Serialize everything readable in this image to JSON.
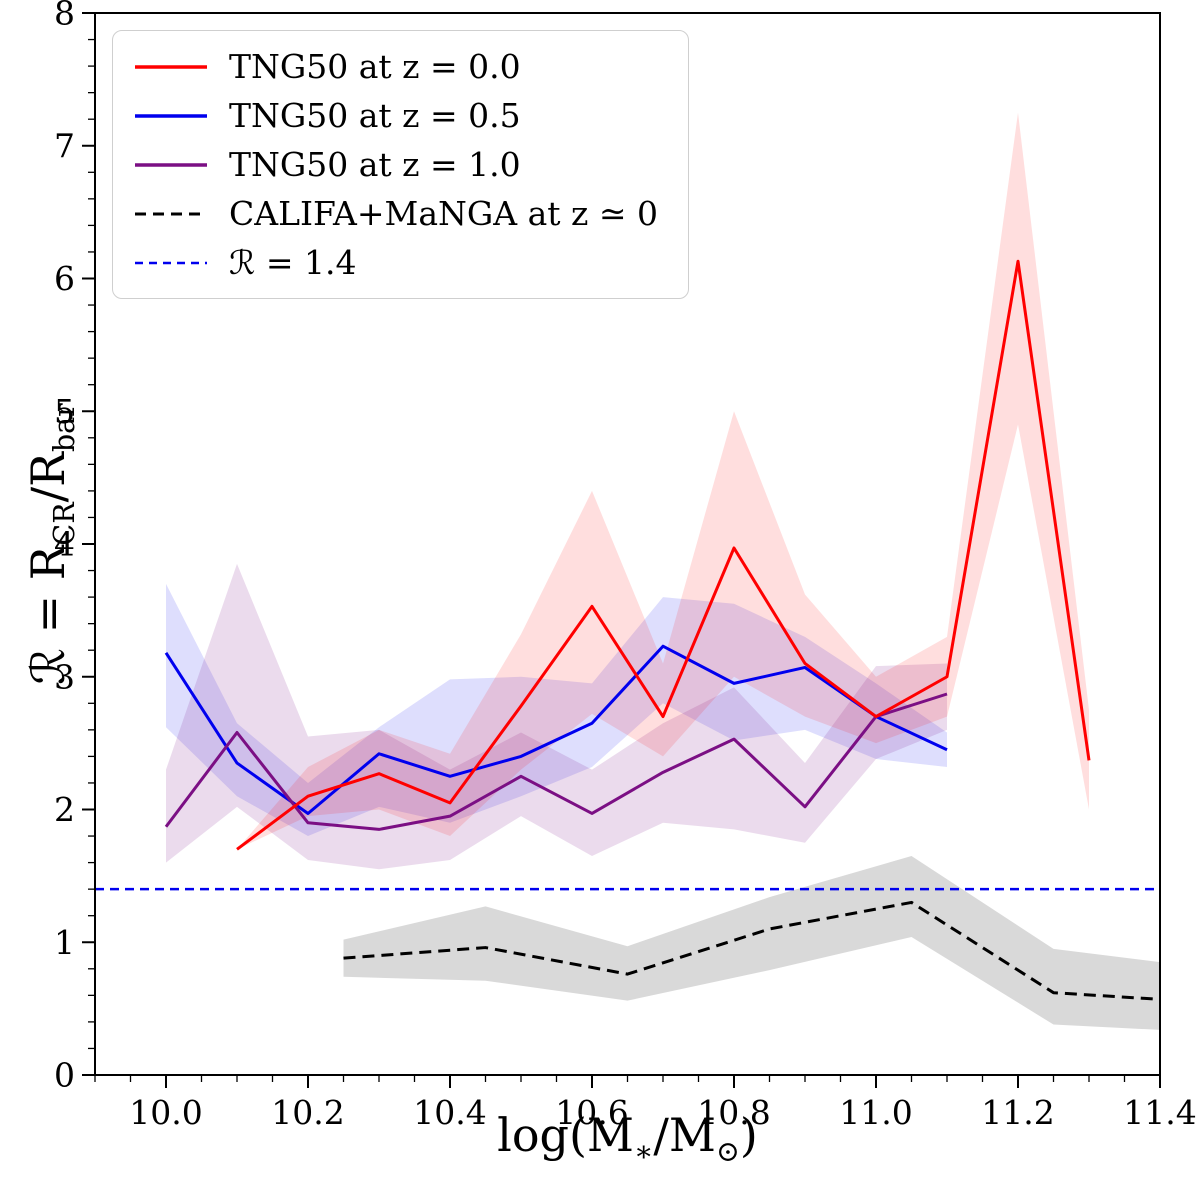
{
  "chart_data": {
    "type": "line",
    "title": "",
    "xlabel_parts": {
      "p1": "log(M",
      "s1": "∗",
      "p2": "/M",
      "s2": "⊙",
      "p3": ")"
    },
    "ylabel_parts": {
      "p1": "ℛ = R",
      "s1": "CR",
      "p2": "/R",
      "s2": "bar"
    },
    "xlim": [
      9.9,
      11.4
    ],
    "ylim": [
      0,
      8
    ],
    "grid": false,
    "xticks": {
      "values": [
        10.0,
        10.2,
        10.4,
        10.6,
        10.8,
        11.0,
        11.2,
        11.4
      ],
      "labels": [
        "10.0",
        "10.2",
        "10.4",
        "10.6",
        "10.8",
        "11.0",
        "11.2",
        "11.4"
      ]
    },
    "yticks": {
      "values": [
        0,
        1,
        2,
        3,
        4,
        5,
        6,
        7,
        8
      ],
      "labels": [
        "0",
        "1",
        "2",
        "3",
        "4",
        "5",
        "6",
        "7",
        "8"
      ]
    },
    "minor": {
      "x_step": 0.05,
      "y_step": 0.2
    },
    "hline": {
      "y": 1.4,
      "color": "#0000ee",
      "dash": "9,6",
      "width": 2.5
    },
    "series": [
      {
        "name": "TNG50 at z = 0.5",
        "color": "#0000ee",
        "style": "solid",
        "width": 3,
        "x": [
          10.0,
          10.1,
          10.2,
          10.3,
          10.4,
          10.5,
          10.6,
          10.7,
          10.8,
          10.9,
          11.0,
          11.1
        ],
        "y": [
          3.18,
          2.35,
          1.97,
          2.42,
          2.25,
          2.4,
          2.65,
          3.23,
          2.95,
          3.07,
          2.7,
          2.45
        ],
        "band": {
          "lower": [
            2.62,
            2.1,
            1.8,
            2.02,
            1.9,
            2.1,
            2.32,
            2.8,
            2.52,
            2.6,
            2.38,
            2.32
          ],
          "upper": [
            3.7,
            2.65,
            2.2,
            2.62,
            2.98,
            3.0,
            2.95,
            3.6,
            3.55,
            3.3,
            2.95,
            2.58
          ],
          "fill": "rgba(0,0,238,0.13)"
        }
      },
      {
        "name": "TNG50 at z = 1.0",
        "color": "#7b0f84",
        "style": "solid",
        "width": 3,
        "x": [
          10.0,
          10.1,
          10.2,
          10.3,
          10.4,
          10.5,
          10.6,
          10.7,
          10.8,
          10.9,
          11.0,
          11.1
        ],
        "y": [
          1.87,
          2.58,
          1.9,
          1.85,
          1.95,
          2.25,
          1.97,
          2.28,
          2.53,
          2.02,
          2.7,
          2.87
        ],
        "band": {
          "lower": [
            1.6,
            2.02,
            1.62,
            1.55,
            1.62,
            1.95,
            1.65,
            1.9,
            1.85,
            1.75,
            2.38,
            2.6
          ],
          "upper": [
            2.3,
            3.85,
            2.55,
            2.6,
            2.3,
            2.58,
            2.3,
            2.65,
            2.92,
            2.35,
            3.08,
            3.1
          ],
          "fill": "rgba(123,15,132,0.15)"
        }
      },
      {
        "name": "TNG50 at z = 0.0",
        "color": "#ff0000",
        "style": "solid",
        "width": 3,
        "x": [
          10.1,
          10.2,
          10.3,
          10.4,
          10.5,
          10.6,
          10.7,
          10.8,
          10.9,
          11.0,
          11.1,
          11.2,
          11.3
        ],
        "y": [
          1.7,
          2.1,
          2.27,
          2.05,
          2.78,
          3.53,
          2.7,
          3.97,
          3.1,
          2.7,
          3.0,
          6.13,
          2.37
        ],
        "band": {
          "lower": [
            1.7,
            1.95,
            2.0,
            1.8,
            2.3,
            2.72,
            2.4,
            3.0,
            2.7,
            2.5,
            2.7,
            4.9,
            2.0
          ],
          "upper": [
            1.7,
            2.32,
            2.6,
            2.42,
            3.32,
            4.4,
            3.1,
            5.0,
            3.62,
            3.0,
            3.3,
            7.25,
            2.75
          ],
          "fill": "rgba(255,0,0,0.13)"
        }
      },
      {
        "name": "CALIFA+MaNGA at z ≃ 0",
        "color": "#000000",
        "style": "dashed",
        "dash": "12,7",
        "width": 3,
        "x": [
          10.25,
          10.45,
          10.65,
          10.85,
          11.05,
          11.25,
          11.4
        ],
        "y": [
          0.88,
          0.96,
          0.76,
          1.1,
          1.3,
          0.62,
          0.57
        ],
        "band": {
          "lower": [
            0.74,
            0.71,
            0.56,
            0.79,
            1.04,
            0.38,
            0.34
          ],
          "upper": [
            1.02,
            1.27,
            0.97,
            1.34,
            1.65,
            0.95,
            0.85
          ],
          "fill": "rgba(128,128,128,0.30)"
        }
      }
    ],
    "legend": {
      "position": "top-left",
      "items": [
        {
          "label": "TNG50 at z = 0.0",
          "color": "#ff0000",
          "dash": "none",
          "width": 3.5
        },
        {
          "label": "TNG50 at z = 0.5",
          "color": "#0000ee",
          "dash": "none",
          "width": 3.5
        },
        {
          "label": "TNG50 at z = 1.0",
          "color": "#7b0f84",
          "dash": "none",
          "width": 3.5
        },
        {
          "label": "CALIFA+MaNGA at z ≃ 0",
          "color": "#000000",
          "dash": "11,7",
          "width": 3
        },
        {
          "label": "ℛ = 1.4",
          "color": "#0000ee",
          "dash": "8,6",
          "width": 2.5
        }
      ]
    }
  }
}
